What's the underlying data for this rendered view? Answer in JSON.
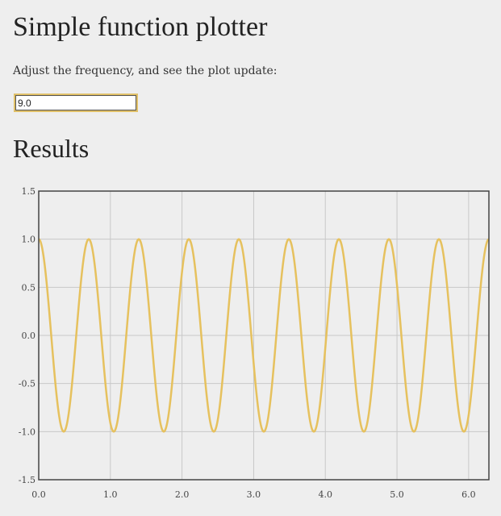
{
  "header": {
    "title": "Simple function plotter",
    "instructions": "Adjust the frequency, and see the plot update:"
  },
  "frequency_input": {
    "value": "9.0"
  },
  "results": {
    "heading": "Results"
  },
  "chart_data": {
    "type": "line",
    "title": "",
    "xlabel": "",
    "ylabel": "",
    "function": "cos(frequency * x)",
    "frequency": 9.0,
    "xlim": [
      0,
      6.283
    ],
    "ylim": [
      -1.5,
      1.5
    ],
    "x_ticks": [
      "0.0",
      "1.0",
      "2.0",
      "3.0",
      "4.0",
      "5.0",
      "6.0"
    ],
    "y_ticks": [
      "1.5",
      "1.0",
      "0.5",
      "0.0",
      "-0.5",
      "-1.0",
      "-1.5"
    ],
    "grid": true,
    "line_color": "#e6c15e",
    "series": [
      {
        "x": [
          0.0,
          0.349,
          0.698,
          1.047,
          1.396,
          1.745,
          2.094,
          2.443,
          2.793,
          3.142,
          3.491,
          3.84,
          4.189,
          4.538,
          4.887,
          5.236,
          5.585,
          5.934,
          6.283
        ],
        "values": [
          1.0,
          -1.0,
          1.0,
          -1.0,
          1.0,
          -1.0,
          1.0,
          -1.0,
          1.0,
          -1.0,
          1.0,
          -1.0,
          1.0,
          -1.0,
          1.0,
          -1.0,
          1.0,
          -1.0,
          1.0
        ]
      }
    ]
  }
}
